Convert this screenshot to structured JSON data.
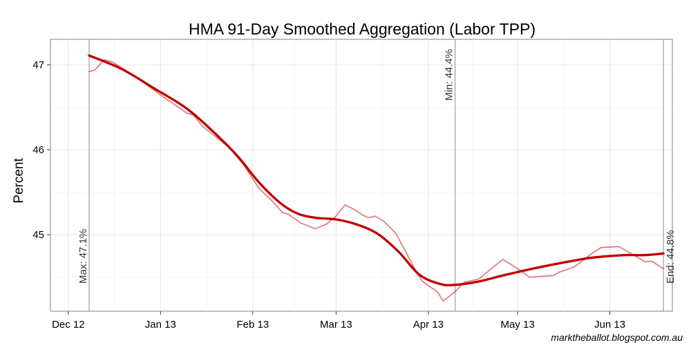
{
  "chart_data": {
    "type": "line",
    "title": "HMA 91-Day Smoothed Aggregation (Labor TPP)",
    "ylabel": "Percent",
    "xlabel": "",
    "credit": "marktheballot.blogspot.com.au",
    "ylim": [
      44.1,
      47.3
    ],
    "xlim": [
      "2012-11-25",
      "2013-06-22"
    ],
    "x_ticks": [
      {
        "date": "2012-12-01",
        "label": "Dec 12"
      },
      {
        "date": "2013-01-01",
        "label": "Jan 13"
      },
      {
        "date": "2013-02-01",
        "label": "Feb 13"
      },
      {
        "date": "2013-03-01",
        "label": "Mar 13"
      },
      {
        "date": "2013-04-01",
        "label": "Apr 13"
      },
      {
        "date": "2013-05-01",
        "label": "May 13"
      },
      {
        "date": "2013-06-01",
        "label": "Jun 13"
      }
    ],
    "y_ticks": [
      45,
      46,
      47
    ],
    "grid": true,
    "series": [
      {
        "color": "#c0000080",
        "points": [
          [
            "2012-12-08",
            46.92
          ],
          [
            "2012-12-10",
            46.94
          ],
          [
            "2012-12-13",
            47.06
          ],
          [
            "2012-12-16",
            47.03
          ],
          [
            "2012-12-24",
            46.85
          ],
          [
            "2013-01-02",
            46.62
          ],
          [
            "2013-01-10",
            46.43
          ],
          [
            "2013-01-12",
            46.41
          ],
          [
            "2013-01-15",
            46.28
          ],
          [
            "2013-01-20",
            46.14
          ],
          [
            "2013-01-24",
            46.03
          ],
          [
            "2013-01-29",
            45.82
          ],
          [
            "2013-02-03",
            45.55
          ],
          [
            "2013-02-08",
            45.38
          ],
          [
            "2013-02-11",
            45.26
          ],
          [
            "2013-02-13",
            45.24
          ],
          [
            "2013-02-17",
            45.14
          ],
          [
            "2013-02-22",
            45.07
          ],
          [
            "2013-02-26",
            45.13
          ],
          [
            "2013-03-01",
            45.22
          ],
          [
            "2013-03-04",
            45.35
          ],
          [
            "2013-03-07",
            45.3
          ],
          [
            "2013-03-10",
            45.23
          ],
          [
            "2013-03-12",
            45.2
          ],
          [
            "2013-03-14",
            45.22
          ],
          [
            "2013-03-17",
            45.16
          ],
          [
            "2013-03-21",
            45.02
          ],
          [
            "2013-03-25",
            44.76
          ],
          [
            "2013-03-28",
            44.56
          ],
          [
            "2013-03-30",
            44.45
          ],
          [
            "2013-04-04",
            44.33
          ],
          [
            "2013-04-06",
            44.22
          ],
          [
            "2013-04-10",
            44.33
          ],
          [
            "2013-04-13",
            44.44
          ],
          [
            "2013-04-18",
            44.48
          ],
          [
            "2013-04-26",
            44.71
          ],
          [
            "2013-05-01",
            44.6
          ],
          [
            "2013-05-05",
            44.5
          ],
          [
            "2013-05-13",
            44.52
          ],
          [
            "2013-05-15",
            44.56
          ],
          [
            "2013-05-20",
            44.62
          ],
          [
            "2013-05-26",
            44.78
          ],
          [
            "2013-05-29",
            44.85
          ],
          [
            "2013-06-04",
            44.86
          ],
          [
            "2013-06-10",
            44.74
          ],
          [
            "2013-06-13",
            44.68
          ],
          [
            "2013-06-15",
            44.69
          ],
          [
            "2013-06-19",
            44.6
          ]
        ]
      },
      {
        "color": "#c00000",
        "points": [
          [
            "2012-12-08",
            47.11
          ],
          [
            "2012-12-19",
            46.95
          ],
          [
            "2012-12-30",
            46.72
          ],
          [
            "2013-01-10",
            46.48
          ],
          [
            "2013-01-20",
            46.17
          ],
          [
            "2013-01-27",
            45.92
          ],
          [
            "2013-02-03",
            45.62
          ],
          [
            "2013-02-10",
            45.38
          ],
          [
            "2013-02-16",
            45.25
          ],
          [
            "2013-02-22",
            45.2
          ],
          [
            "2013-03-01",
            45.18
          ],
          [
            "2013-03-08",
            45.12
          ],
          [
            "2013-03-15",
            45.01
          ],
          [
            "2013-03-22",
            44.8
          ],
          [
            "2013-03-29",
            44.53
          ],
          [
            "2013-04-05",
            44.42
          ],
          [
            "2013-04-10",
            44.41
          ],
          [
            "2013-04-18",
            44.45
          ],
          [
            "2013-04-26",
            44.52
          ],
          [
            "2013-05-06",
            44.6
          ],
          [
            "2013-05-16",
            44.67
          ],
          [
            "2013-05-26",
            44.73
          ],
          [
            "2013-06-06",
            44.76
          ],
          [
            "2013-06-13",
            44.76
          ],
          [
            "2013-06-19",
            44.78
          ]
        ]
      }
    ],
    "annotations": [
      {
        "date": "2012-12-08",
        "text": "Max: 47.1%",
        "anchor": "bottom"
      },
      {
        "date": "2013-04-10",
        "text": "Min: 44.4%",
        "anchor": "top"
      },
      {
        "date": "2013-06-19",
        "text": "End: 44.8%",
        "anchor": "bottom"
      }
    ]
  }
}
